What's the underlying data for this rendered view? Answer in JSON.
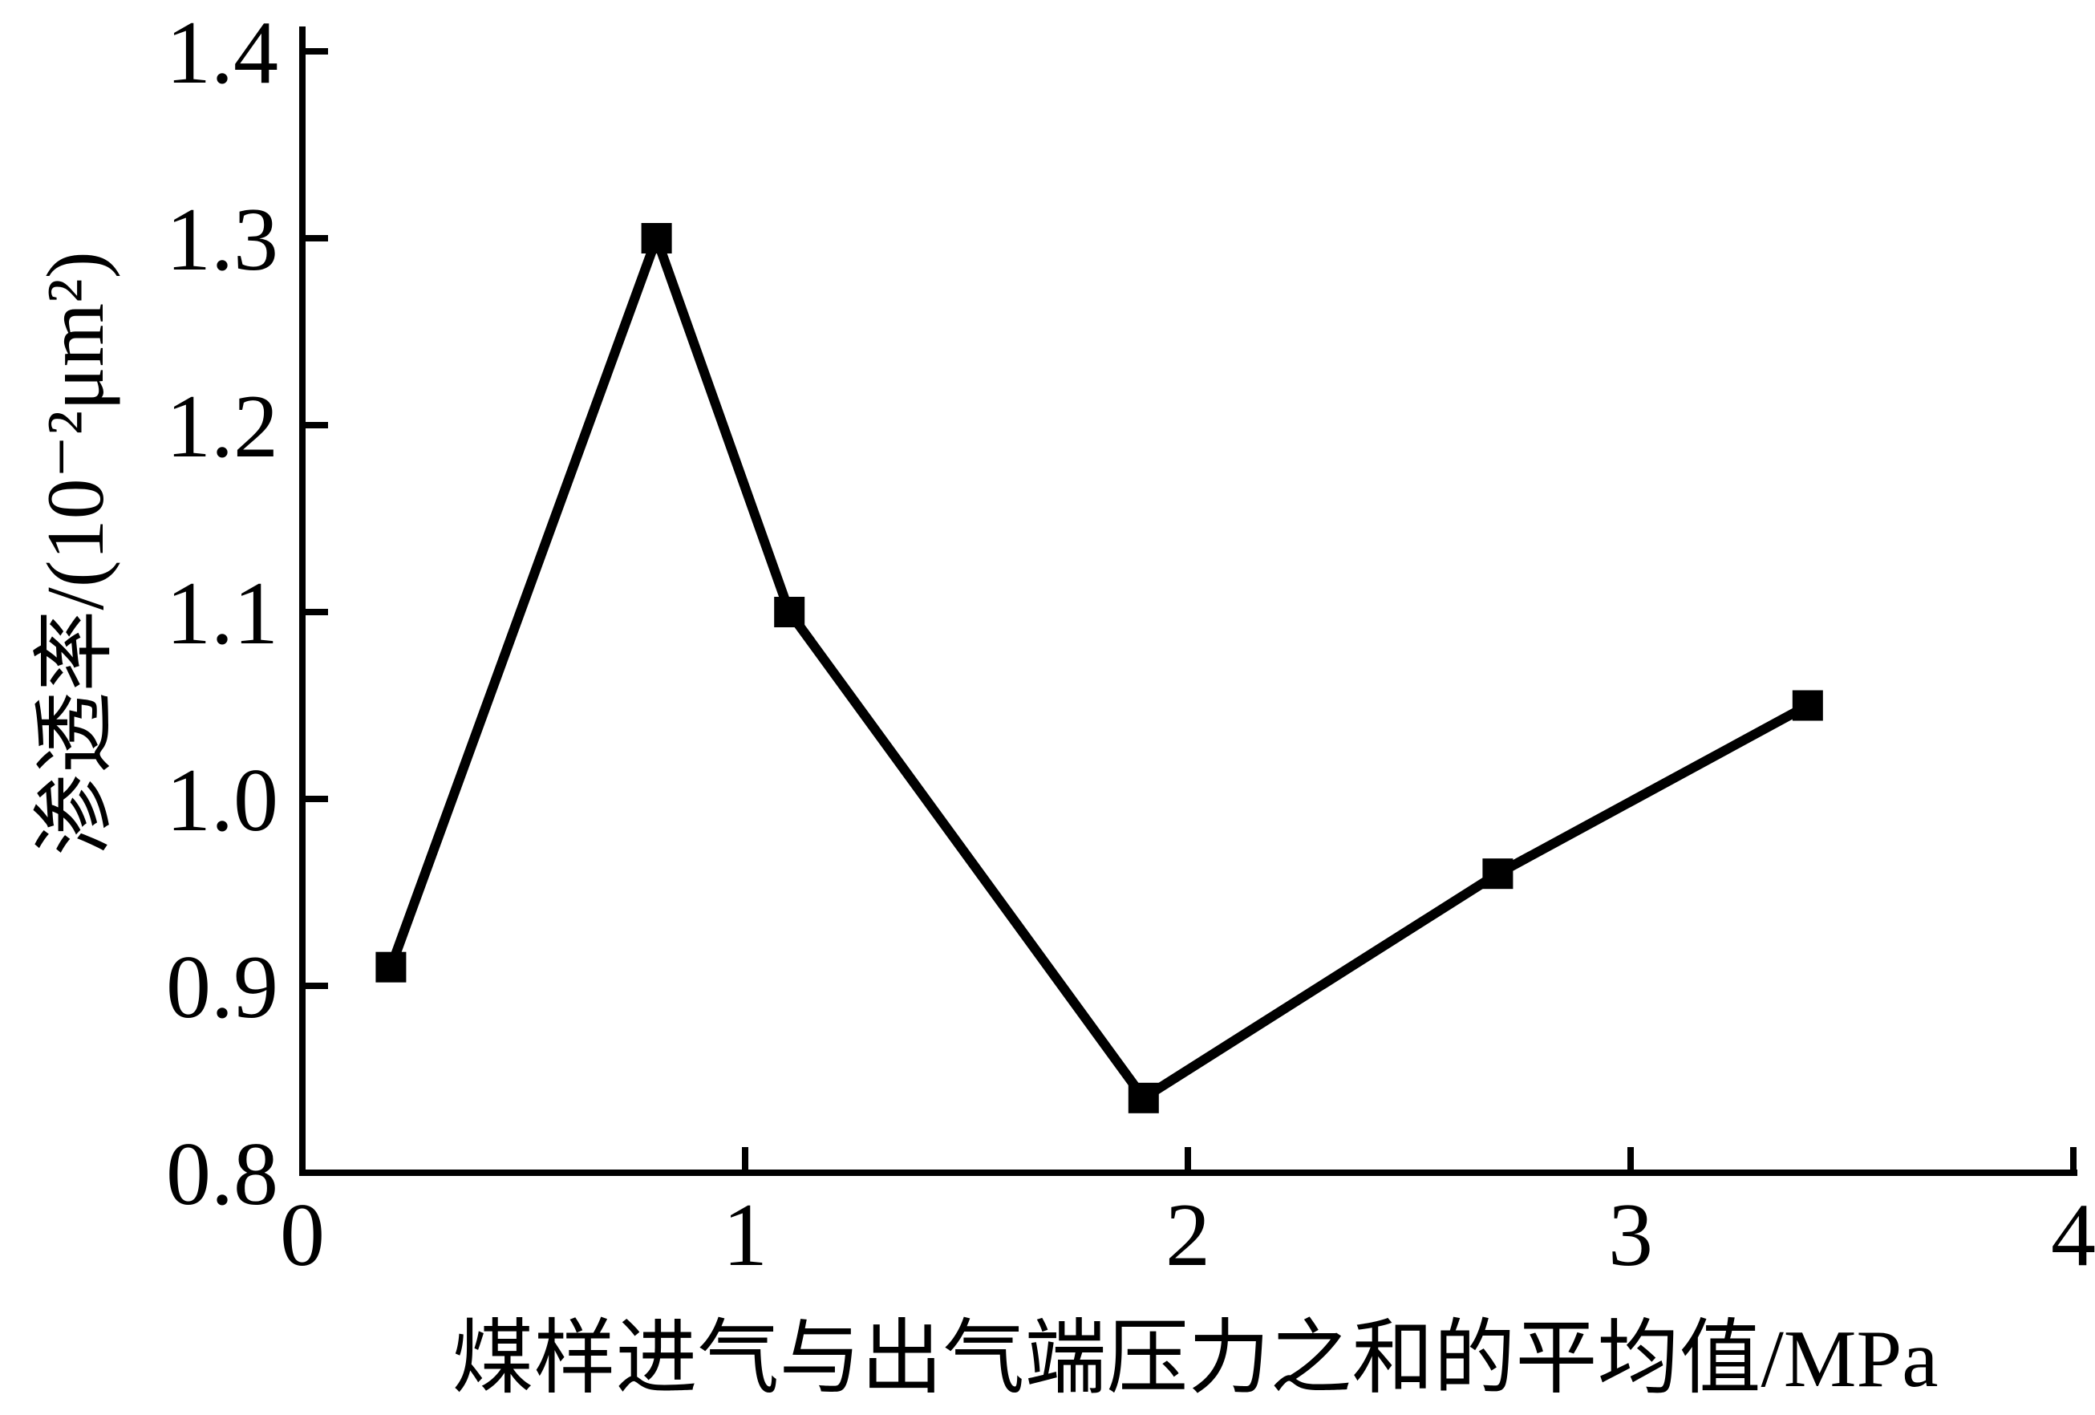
{
  "chart_data": {
    "type": "line",
    "title": "",
    "xlabel": "煤样进气与出气端压力之和的平均值/MPa",
    "ylabel": "渗透率/(10⁻²μm²)",
    "xlim": [
      0,
      4
    ],
    "ylim": [
      0.8,
      1.4
    ],
    "grid": false,
    "legend": null,
    "background_color": "#ffffff",
    "axis_color": "#000000",
    "xticks": [
      {
        "value": 0,
        "label": "0"
      },
      {
        "value": 1,
        "label": "1"
      },
      {
        "value": 2,
        "label": "2"
      },
      {
        "value": 3,
        "label": "3"
      },
      {
        "value": 4,
        "label": "4"
      }
    ],
    "yticks": [
      {
        "value": 0.8,
        "label": "0.8"
      },
      {
        "value": 0.9,
        "label": "0.9"
      },
      {
        "value": 1.0,
        "label": "1.0"
      },
      {
        "value": 1.1,
        "label": "1.1"
      },
      {
        "value": 1.2,
        "label": "1.2"
      },
      {
        "value": 1.3,
        "label": "1.3"
      },
      {
        "value": 1.4,
        "label": "1.4"
      }
    ],
    "series": [
      {
        "name": "渗透率",
        "color": "#000000",
        "marker": "filled-square",
        "points": [
          {
            "x": 0.2,
            "y": 0.91
          },
          {
            "x": 0.8,
            "y": 1.3
          },
          {
            "x": 1.1,
            "y": 1.1
          },
          {
            "x": 1.9,
            "y": 0.84
          },
          {
            "x": 2.7,
            "y": 0.96
          },
          {
            "x": 3.4,
            "y": 1.05
          }
        ]
      }
    ]
  }
}
